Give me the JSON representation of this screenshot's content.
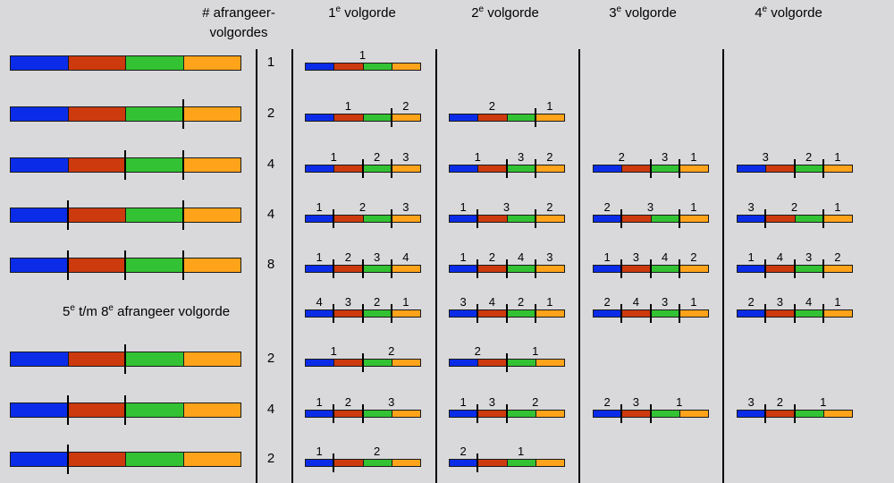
{
  "colors": {
    "blue": "#0a2ce8",
    "red": "#cc3a0e",
    "green": "#33c233",
    "orange": "#ffa31a"
  },
  "headers": {
    "count_line1": "# afrangeer-",
    "count_line2": "volgordes",
    "cols": [
      {
        "num": "1",
        "sup": "e",
        "word": " volgorde"
      },
      {
        "num": "2",
        "sup": "e",
        "word": " volgorde"
      },
      {
        "num": "3",
        "sup": "e",
        "word": " volgorde"
      },
      {
        "num": "4",
        "sup": "e",
        "word": " volgorde"
      }
    ]
  },
  "note": {
    "a": "5",
    "a_sup": "e",
    "mid": " t/m 8",
    "b_sup": "e",
    "tail": " afrangeer volgorde"
  },
  "rows": [
    {
      "cuts": [],
      "count": "1",
      "orders": [
        {
          "cuts": [],
          "labels": [
            "1"
          ]
        }
      ]
    },
    {
      "cuts": [
        3
      ],
      "count": "2",
      "orders": [
        {
          "cuts": [
            3
          ],
          "labels": [
            "1",
            "2"
          ]
        },
        {
          "cuts": [
            3
          ],
          "labels": [
            "2",
            "1"
          ]
        }
      ]
    },
    {
      "cuts": [
        2,
        3
      ],
      "count": "4",
      "orders": [
        {
          "cuts": [
            2,
            3
          ],
          "labels": [
            "1",
            "2",
            "3"
          ]
        },
        {
          "cuts": [
            2,
            3
          ],
          "labels": [
            "1",
            "3",
            "2"
          ]
        },
        {
          "cuts": [
            2,
            3
          ],
          "labels": [
            "2",
            "3",
            "1"
          ]
        },
        {
          "cuts": [
            2,
            3
          ],
          "labels": [
            "3",
            "2",
            "1"
          ]
        }
      ]
    },
    {
      "cuts": [
        1,
        3
      ],
      "count": "4",
      "orders": [
        {
          "cuts": [
            1,
            3
          ],
          "labels": [
            "1",
            "2",
            "3"
          ]
        },
        {
          "cuts": [
            1,
            3
          ],
          "labels": [
            "1",
            "3",
            "2"
          ]
        },
        {
          "cuts": [
            1,
            3
          ],
          "labels": [
            "2",
            "3",
            "1"
          ]
        },
        {
          "cuts": [
            1,
            3
          ],
          "labels": [
            "3",
            "2",
            "1"
          ]
        }
      ]
    },
    {
      "cuts": [
        1,
        2,
        3
      ],
      "count": "8",
      "orders": [
        {
          "cuts": [
            1,
            2,
            3
          ],
          "labels": [
            "1",
            "2",
            "3",
            "4"
          ]
        },
        {
          "cuts": [
            1,
            2,
            3
          ],
          "labels": [
            "1",
            "2",
            "4",
            "3"
          ]
        },
        {
          "cuts": [
            1,
            2,
            3
          ],
          "labels": [
            "1",
            "3",
            "4",
            "2"
          ]
        },
        {
          "cuts": [
            1,
            2,
            3
          ],
          "labels": [
            "1",
            "4",
            "3",
            "2"
          ]
        }
      ]
    },
    {
      "cuts": null,
      "count": "",
      "orders": [
        {
          "cuts": [
            1,
            2,
            3
          ],
          "labels": [
            "4",
            "3",
            "2",
            "1"
          ]
        },
        {
          "cuts": [
            1,
            2,
            3
          ],
          "labels": [
            "3",
            "4",
            "2",
            "1"
          ]
        },
        {
          "cuts": [
            1,
            2,
            3
          ],
          "labels": [
            "2",
            "4",
            "3",
            "1"
          ]
        },
        {
          "cuts": [
            1,
            2,
            3
          ],
          "labels": [
            "2",
            "3",
            "4",
            "1"
          ]
        }
      ]
    },
    {
      "cuts": [
        2
      ],
      "count": "2",
      "orders": [
        {
          "cuts": [
            2
          ],
          "labels": [
            "1",
            "2"
          ]
        },
        {
          "cuts": [
            2
          ],
          "labels": [
            "2",
            "1"
          ]
        }
      ]
    },
    {
      "cuts": [
        1,
        2
      ],
      "count": "4",
      "orders": [
        {
          "cuts": [
            1,
            2
          ],
          "labels": [
            "1",
            "2",
            "3"
          ]
        },
        {
          "cuts": [
            1,
            2
          ],
          "labels": [
            "1",
            "3",
            "2"
          ]
        },
        {
          "cuts": [
            1,
            2
          ],
          "labels": [
            "2",
            "3",
            "1"
          ]
        },
        {
          "cuts": [
            1,
            2
          ],
          "labels": [
            "3",
            "2",
            "1"
          ]
        }
      ]
    },
    {
      "cuts": [
        1
      ],
      "count": "2",
      "orders": [
        {
          "cuts": [
            1
          ],
          "labels": [
            "1",
            "2"
          ]
        },
        {
          "cuts": [
            1
          ],
          "labels": [
            "2",
            "1"
          ]
        }
      ]
    }
  ]
}
